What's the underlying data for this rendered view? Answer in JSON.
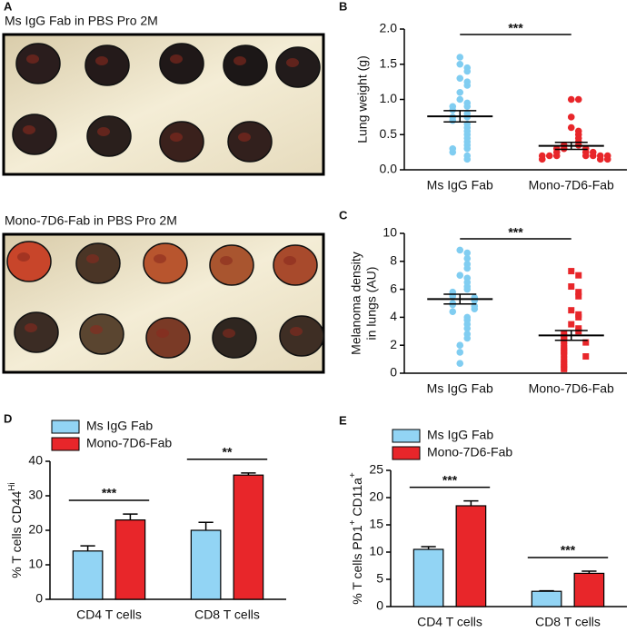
{
  "panel_a": {
    "label": "A",
    "top_caption": "Ms IgG Fab in PBS Pro 2M",
    "bottom_caption": "Mono-7D6-Fab in PBS Pro 2M"
  },
  "chart_data": [
    {
      "type": "strip",
      "panel_label": "B",
      "ylabel": "Lung weight (g)",
      "annotation": "***",
      "categories": [
        "Ms IgG Fab",
        "Mono-7D6-Fab"
      ],
      "ylim": [
        0,
        2
      ],
      "yticks": [
        {
          "value": 0,
          "label": "0.0"
        },
        0.5,
        {
          "value": 1,
          "label": "1.0"
        },
        1.5,
        {
          "value": 2,
          "label": "2.0"
        }
      ],
      "series": [
        {
          "name": "Ms IgG Fab",
          "color": "#80cdf1",
          "marker": "circle",
          "mean": 0.76,
          "sem": 0.08,
          "values": [
            1.6,
            1.5,
            1.45,
            1.4,
            1.3,
            1.25,
            1.2,
            1.1,
            1.0,
            0.95,
            0.9,
            0.9,
            0.85,
            0.8,
            0.75,
            0.75,
            0.7,
            0.65,
            0.6,
            0.55,
            0.5,
            0.45,
            0.4,
            0.35,
            0.3,
            0.3,
            0.25,
            0.2,
            0.15
          ]
        },
        {
          "name": "Mono-7D6-Fab",
          "color": "#e8262a",
          "marker": "circle",
          "mean": 0.34,
          "sem": 0.05,
          "values": [
            1.0,
            1.0,
            0.75,
            0.6,
            0.55,
            0.5,
            0.45,
            0.4,
            0.35,
            0.35,
            0.3,
            0.3,
            0.3,
            0.25,
            0.25,
            0.25,
            0.2,
            0.2,
            0.2,
            0.2,
            0.2,
            0.2,
            0.2,
            0.15,
            0.15,
            0.15
          ]
        }
      ]
    },
    {
      "type": "strip",
      "panel_label": "C",
      "ylabel": [
        "Melanoma density",
        "in lungs (AU)"
      ],
      "annotation": "***",
      "categories": [
        "Ms IgG Fab",
        "Mono-7D6-Fab"
      ],
      "ylim": [
        0,
        10
      ],
      "yticks": [
        0,
        2,
        4,
        6,
        8,
        10
      ],
      "series": [
        {
          "name": "Ms IgG Fab",
          "color": "#80cdf1",
          "marker": "circle",
          "mean": 5.3,
          "sem": 0.35,
          "values": [
            8.8,
            8.6,
            8.2,
            7.8,
            7.5,
            7.0,
            6.8,
            6.5,
            6.2,
            6.0,
            5.8,
            5.6,
            5.5,
            5.4,
            5.2,
            5.0,
            4.9,
            4.8,
            4.6,
            4.4,
            4.0,
            3.8,
            3.5,
            3.2,
            2.8,
            2.5,
            2.0,
            1.5,
            0.7
          ]
        },
        {
          "name": "Mono-7D6-Fab",
          "color": "#e8262a",
          "marker": "square",
          "mean": 2.7,
          "sem": 0.35,
          "values": [
            7.3,
            7.0,
            6.2,
            5.8,
            5.5,
            4.5,
            4.2,
            4.0,
            3.5,
            3.2,
            3.0,
            2.8,
            2.6,
            2.5,
            2.3,
            2.2,
            2.0,
            1.8,
            1.6,
            1.5,
            1.3,
            1.2,
            1.0,
            0.8,
            0.6,
            0.4,
            0.3
          ]
        }
      ]
    },
    {
      "type": "bar",
      "panel_label": "D",
      "legend": "upper-left",
      "ylabel": [
        {
          "text": "% T cells CD44"
        },
        {
          "text": "Hi",
          "sup": true
        }
      ],
      "categories": [
        "CD4 T cells",
        "CD8 T cells"
      ],
      "annotations": [
        "***",
        "**"
      ],
      "ylim": [
        0,
        40
      ],
      "yticks": [
        0,
        10,
        20,
        30,
        40
      ],
      "series": [
        {
          "name": "Ms IgG Fab",
          "color": "#92d4f4",
          "values": [
            14,
            20
          ],
          "errors": [
            1.5,
            2.3
          ]
        },
        {
          "name": "Mono-7D6-Fab",
          "color": "#e8262a",
          "values": [
            23,
            36
          ],
          "errors": [
            1.7,
            0.6
          ]
        }
      ]
    },
    {
      "type": "bar",
      "panel_label": "E",
      "legend": "upper-left",
      "ylabel": [
        {
          "text": "% T cells PD1"
        },
        {
          "text": "+",
          "sup": true
        },
        {
          "text": " CD11a"
        },
        {
          "text": "+",
          "sup": true
        }
      ],
      "categories": [
        "CD4 T cells",
        "CD8 T cells"
      ],
      "annotations": [
        "***",
        "***"
      ],
      "ylim": [
        0,
        25
      ],
      "yticks": [
        0,
        5,
        10,
        15,
        20,
        25
      ],
      "series": [
        {
          "name": "Ms IgG Fab",
          "color": "#92d4f4",
          "values": [
            10.5,
            2.8
          ],
          "errors": [
            0.5,
            0.1
          ]
        },
        {
          "name": "Mono-7D6-Fab",
          "color": "#e8262a",
          "values": [
            18.5,
            6.1
          ],
          "errors": [
            0.9,
            0.4
          ]
        }
      ]
    }
  ]
}
